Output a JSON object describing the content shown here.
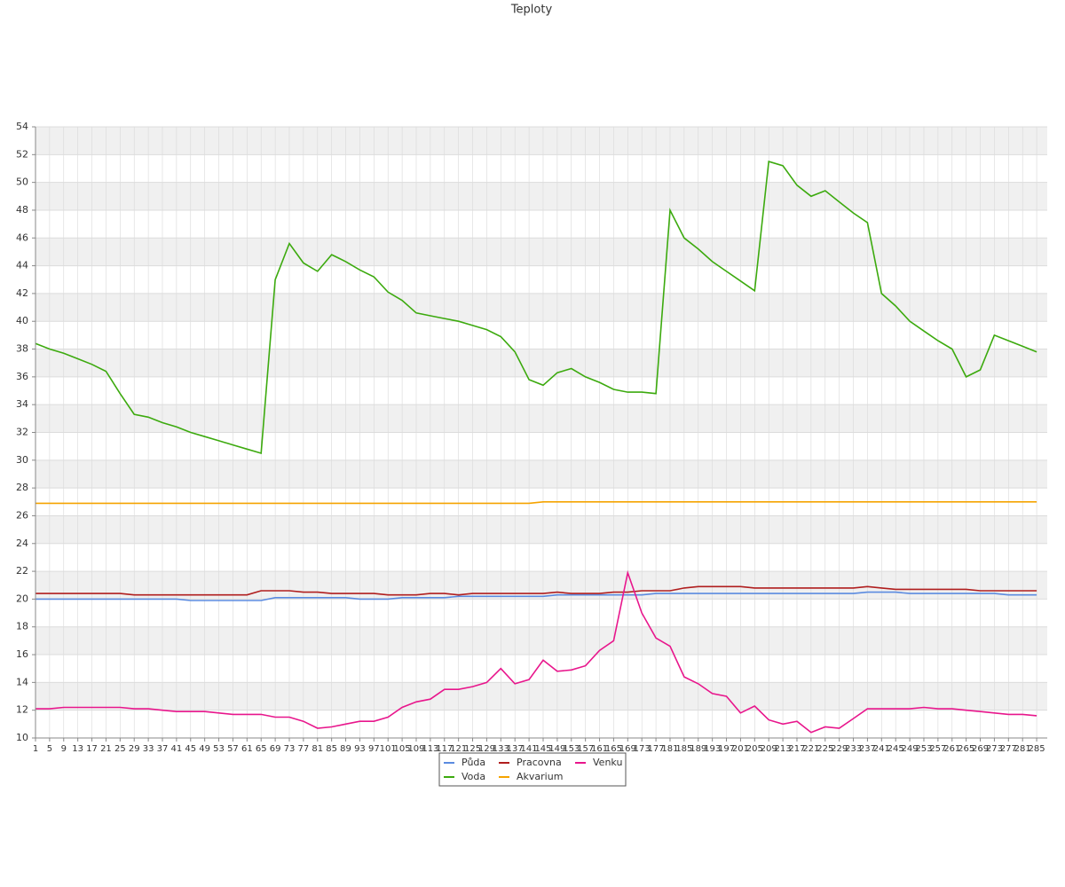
{
  "chart_data": {
    "type": "line",
    "title": "Teploty",
    "x": [
      1,
      5,
      9,
      13,
      17,
      21,
      25,
      29,
      33,
      37,
      41,
      45,
      49,
      53,
      57,
      61,
      65,
      69,
      73,
      77,
      81,
      85,
      89,
      93,
      97,
      101,
      105,
      109,
      113,
      117,
      121,
      125,
      129,
      133,
      137,
      141,
      145,
      149,
      153,
      157,
      161,
      165,
      169,
      173,
      177,
      181,
      185,
      189,
      193,
      197,
      201,
      205,
      209,
      213,
      217,
      221,
      225,
      229,
      233,
      237,
      241,
      245,
      249,
      253,
      257,
      261,
      265,
      269,
      273,
      277,
      281,
      285
    ],
    "xlim": [
      1,
      288
    ],
    "ylim": [
      10,
      54
    ],
    "yticks": [
      10,
      12,
      14,
      16,
      18,
      20,
      22,
      24,
      26,
      28,
      30,
      32,
      34,
      36,
      38,
      40,
      42,
      44,
      46,
      48,
      50,
      52,
      54
    ],
    "grid": true,
    "legend": "bottom",
    "series": [
      {
        "name": "Půda",
        "color": "#5b8be0",
        "values": [
          20.0,
          20.0,
          20.0,
          20.0,
          20.0,
          20.0,
          20.0,
          20.0,
          20.0,
          20.0,
          20.0,
          19.9,
          19.9,
          19.9,
          19.9,
          19.9,
          19.9,
          20.1,
          20.1,
          20.1,
          20.1,
          20.1,
          20.1,
          20.0,
          20.0,
          20.0,
          20.1,
          20.1,
          20.1,
          20.1,
          20.2,
          20.2,
          20.2,
          20.2,
          20.2,
          20.2,
          20.2,
          20.3,
          20.3,
          20.3,
          20.3,
          20.3,
          20.3,
          20.3,
          20.4,
          20.4,
          20.4,
          20.4,
          20.4,
          20.4,
          20.4,
          20.4,
          20.4,
          20.4,
          20.4,
          20.4,
          20.4,
          20.4,
          20.4,
          20.5,
          20.5,
          20.5,
          20.4,
          20.4,
          20.4,
          20.4,
          20.4,
          20.4,
          20.4,
          20.3,
          20.3,
          20.3
        ]
      },
      {
        "name": "Voda",
        "color": "#3caa0e",
        "values": [
          38.4,
          38.0,
          37.7,
          37.3,
          36.9,
          36.4,
          34.8,
          33.3,
          33.1,
          32.7,
          32.4,
          32.0,
          31.7,
          31.4,
          31.1,
          30.8,
          30.5,
          43.0,
          45.6,
          44.2,
          43.6,
          44.8,
          44.3,
          43.7,
          43.2,
          42.1,
          41.5,
          40.6,
          40.4,
          40.2,
          40.0,
          39.7,
          39.4,
          38.9,
          37.8,
          35.8,
          35.4,
          36.3,
          36.6,
          36.0,
          35.6,
          35.1,
          34.9,
          34.9,
          34.8,
          48.0,
          46.0,
          45.2,
          44.3,
          43.6,
          42.9,
          42.2,
          51.5,
          51.2,
          49.8,
          49.0,
          49.4,
          48.6,
          47.8,
          47.1,
          42.0,
          41.1,
          40.0,
          39.3,
          38.6,
          38.0,
          36.0,
          36.5,
          39.0,
          38.6,
          38.2,
          37.8
        ]
      },
      {
        "name": "Pracovna",
        "color": "#b01e1e",
        "values": [
          20.4,
          20.4,
          20.4,
          20.4,
          20.4,
          20.4,
          20.4,
          20.3,
          20.3,
          20.3,
          20.3,
          20.3,
          20.3,
          20.3,
          20.3,
          20.3,
          20.6,
          20.6,
          20.6,
          20.5,
          20.5,
          20.4,
          20.4,
          20.4,
          20.4,
          20.3,
          20.3,
          20.3,
          20.4,
          20.4,
          20.3,
          20.4,
          20.4,
          20.4,
          20.4,
          20.4,
          20.4,
          20.5,
          20.4,
          20.4,
          20.4,
          20.5,
          20.5,
          20.6,
          20.6,
          20.6,
          20.8,
          20.9,
          20.9,
          20.9,
          20.9,
          20.8,
          20.8,
          20.8,
          20.8,
          20.8,
          20.8,
          20.8,
          20.8,
          20.9,
          20.8,
          20.7,
          20.7,
          20.7,
          20.7,
          20.7,
          20.7,
          20.6,
          20.6,
          20.6,
          20.6,
          20.6
        ]
      },
      {
        "name": "Akvarium",
        "color": "#f5a300",
        "values": [
          26.9,
          26.9,
          26.9,
          26.9,
          26.9,
          26.9,
          26.9,
          26.9,
          26.9,
          26.9,
          26.9,
          26.9,
          26.9,
          26.9,
          26.9,
          26.9,
          26.9,
          26.9,
          26.9,
          26.9,
          26.9,
          26.9,
          26.9,
          26.9,
          26.9,
          26.9,
          26.9,
          26.9,
          26.9,
          26.9,
          26.9,
          26.9,
          26.9,
          26.9,
          26.9,
          26.9,
          27.0,
          27.0,
          27.0,
          27.0,
          27.0,
          27.0,
          27.0,
          27.0,
          27.0,
          27.0,
          27.0,
          27.0,
          27.0,
          27.0,
          27.0,
          27.0,
          27.0,
          27.0,
          27.0,
          27.0,
          27.0,
          27.0,
          27.0,
          27.0,
          27.0,
          27.0,
          27.0,
          27.0,
          27.0,
          27.0,
          27.0,
          27.0,
          27.0,
          27.0,
          27.0,
          27.0
        ]
      },
      {
        "name": "Venku",
        "color": "#e8168c",
        "values": [
          12.1,
          12.1,
          12.2,
          12.2,
          12.2,
          12.2,
          12.2,
          12.1,
          12.1,
          12.0,
          11.9,
          11.9,
          11.9,
          11.8,
          11.7,
          11.7,
          11.7,
          11.5,
          11.5,
          11.2,
          10.7,
          10.8,
          11.0,
          11.2,
          11.2,
          11.5,
          12.2,
          12.6,
          12.8,
          13.5,
          13.5,
          13.7,
          14.0,
          15.0,
          13.9,
          14.2,
          15.6,
          14.8,
          14.9,
          15.2,
          16.3,
          17.0,
          21.9,
          19.0,
          17.2,
          16.6,
          14.4,
          13.9,
          13.2,
          13.0,
          11.8,
          12.3,
          11.3,
          11.0,
          11.2,
          10.4,
          10.8,
          10.7,
          11.4,
          12.1,
          12.1,
          12.1,
          12.1,
          12.2,
          12.1,
          12.1,
          12.0,
          11.9,
          11.8,
          11.7,
          11.7,
          11.6
        ]
      }
    ]
  }
}
